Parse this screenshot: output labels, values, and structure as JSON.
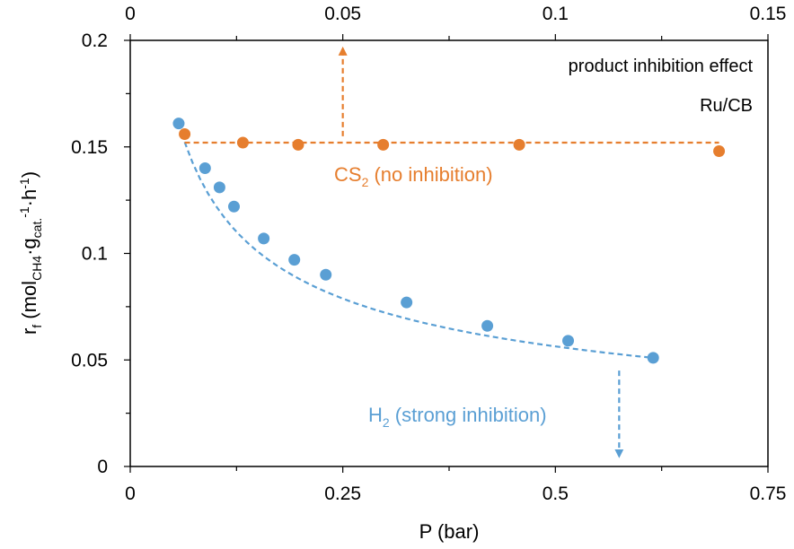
{
  "chart_data": {
    "type": "scatter",
    "title": "",
    "xlabel": "P (bar)",
    "ylabel": "r_f (mol_CH4·g_cat.^-1·h^-1)",
    "ylabel_parts": {
      "main": "r",
      "sub_f": "f",
      "paren_open": " (mol",
      "sub_ch4": "CH4",
      "dot1": "·g",
      "sub_cat": "cat.",
      "sup1": "-1",
      "dot2": "·h",
      "sup2": "-1",
      "paren_close": ")"
    },
    "xlim_bottom": [
      0,
      0.75
    ],
    "xticks_bottom": [
      "0",
      "0.25",
      "0.5",
      "0.75"
    ],
    "xlim_top": [
      0,
      0.15
    ],
    "xticks_top": [
      "0",
      "0.05",
      "0.1",
      "0.15"
    ],
    "ylim": [
      0,
      0.2
    ],
    "yticks": [
      "0",
      "0.05",
      "0.1",
      "0.15",
      "0.2"
    ],
    "grid": false,
    "series": [
      {
        "name": "H2 (strong inhibition)",
        "axis": "bottom",
        "color": "#5a9fd4",
        "x": [
          0.057,
          0.088,
          0.105,
          0.122,
          0.157,
          0.193,
          0.23,
          0.325,
          0.42,
          0.515,
          0.615
        ],
        "y": [
          0.161,
          0.14,
          0.131,
          0.122,
          0.107,
          0.097,
          0.09,
          0.077,
          0.066,
          0.059,
          0.051
        ],
        "fit": {
          "x0": 0.064,
          "x1": 0.615
        }
      },
      {
        "name": "CS2 (no inhibition)",
        "axis": "top",
        "color": "#e67e2e",
        "x": [
          0.0128,
          0.0265,
          0.0395,
          0.0595,
          0.0915,
          0.1385
        ],
        "y": [
          0.156,
          0.152,
          0.151,
          0.151,
          0.151,
          0.148
        ],
        "fit": {
          "x0": 0.0128,
          "x1": 0.1385,
          "y": 0.152
        }
      }
    ],
    "annotations": {
      "effect": "product inhibition effect",
      "catalyst": "Ru/CB",
      "cs2_main": "CS",
      "cs2_sub": "2",
      "cs2_rest": " (no inhibition)",
      "h2_main": "H",
      "h2_sub": "2",
      "h2_rest": " (strong inhibition)"
    },
    "arrows": {
      "orange_up": {
        "axis": "top",
        "x": 0.05,
        "y_from": 0.155,
        "y_to": 0.195
      },
      "blue_down": {
        "axis": "bottom",
        "x": 0.575,
        "y_from": 0.045,
        "y_to": 0.006
      }
    }
  }
}
